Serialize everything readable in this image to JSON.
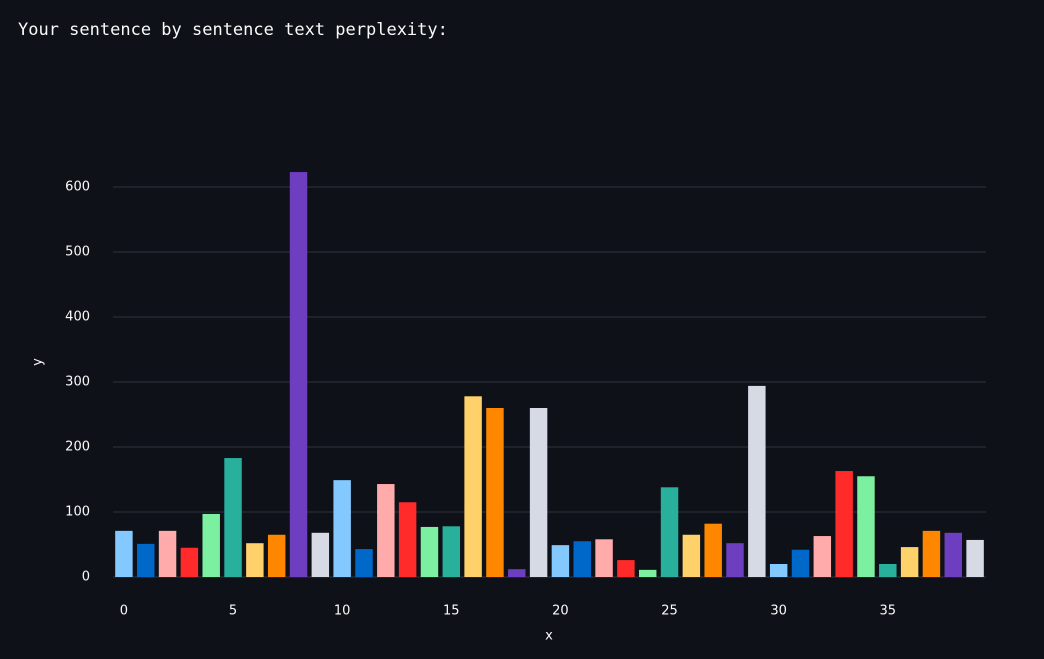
{
  "header": {
    "title": "Your sentence by sentence text perplexity:"
  },
  "chart_data": {
    "type": "bar",
    "x": [
      0,
      1,
      2,
      3,
      4,
      5,
      6,
      7,
      8,
      9,
      10,
      11,
      12,
      13,
      14,
      15,
      16,
      17,
      18,
      19,
      20,
      21,
      22,
      23,
      24,
      25,
      26,
      27,
      28,
      29,
      30,
      31,
      32,
      33,
      34,
      35,
      36,
      37,
      38,
      39
    ],
    "values": [
      71,
      51,
      71,
      45,
      97,
      183,
      52,
      65,
      623,
      68,
      149,
      43,
      143,
      115,
      77,
      78,
      278,
      260,
      12,
      260,
      49,
      55,
      58,
      26,
      11,
      138,
      65,
      82,
      52,
      294,
      20,
      42,
      63,
      163,
      155,
      20,
      46,
      71,
      68,
      57
    ],
    "colors": [
      "#83c9ff",
      "#0068c9",
      "#ffabab",
      "#ff2b2b",
      "#7defa1",
      "#29b09d",
      "#ffd16a",
      "#ff8700",
      "#6d3fc0",
      "#d5dae5"
    ],
    "xlabel": "x",
    "ylabel": "y",
    "xlim": [
      -0.5,
      39.5
    ],
    "xticks": [
      0,
      5,
      10,
      15,
      20,
      25,
      30,
      35
    ],
    "ylim": [
      0,
      656
    ],
    "yticks": [
      0,
      100,
      200,
      300,
      400,
      500,
      600
    ],
    "grid": true
  }
}
